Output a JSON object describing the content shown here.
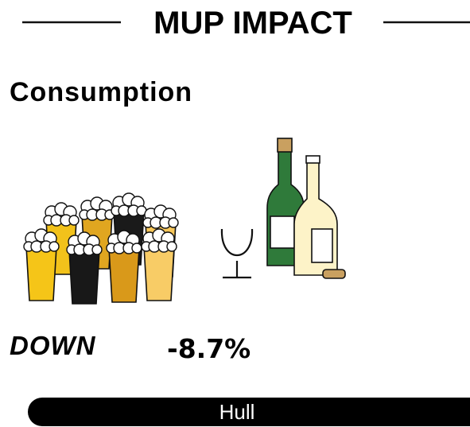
{
  "header": {
    "title": "MUP IMPACT"
  },
  "section": {
    "heading": "Consumption",
    "direction": "DOWN",
    "change": "-8.7%",
    "location": "Hull"
  }
}
